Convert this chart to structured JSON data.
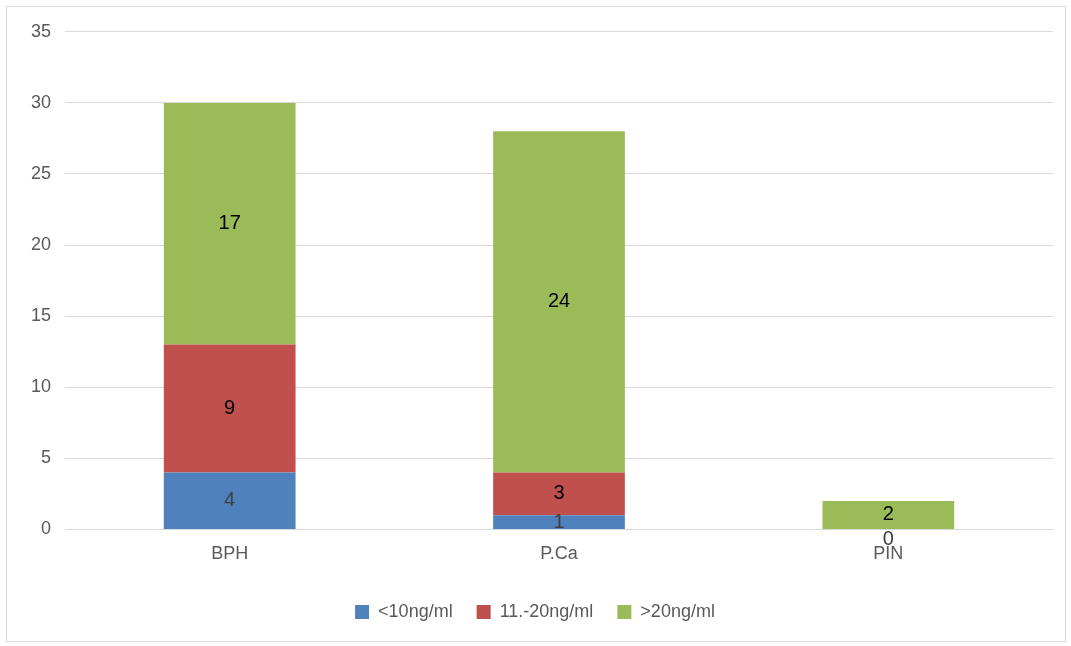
{
  "chart_data": {
    "type": "bar",
    "stacked": true,
    "categories": [
      "BPH",
      "P.Ca",
      "PIN"
    ],
    "series": [
      {
        "name": "<10ng/ml",
        "color": "#4f81bd",
        "values": [
          4,
          1,
          0
        ],
        "value_labels": [
          "4",
          "1",
          "0"
        ]
      },
      {
        "name": "11.-20ng/ml",
        "color": "#c0504d",
        "values": [
          9,
          3,
          0
        ],
        "value_labels": [
          "9",
          "3",
          null
        ]
      },
      {
        "name": ">20ng/ml",
        "color": "#9bbb59",
        "values": [
          17,
          24,
          2
        ],
        "value_labels": [
          "17",
          "24",
          "2"
        ]
      }
    ],
    "ylim": [
      0,
      35
    ],
    "yticks": [
      0,
      5,
      10,
      15,
      20,
      25,
      30,
      35
    ],
    "grid": "y",
    "legend": "bottom"
  }
}
